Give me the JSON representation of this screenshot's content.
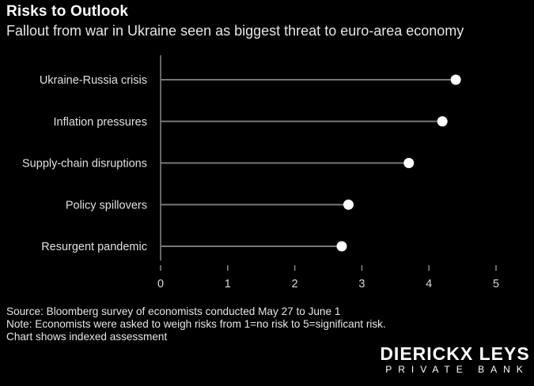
{
  "header": {
    "title": "Risks to Outlook",
    "subtitle": "Fallout from war in Ukraine seen as biggest threat to euro-area economy"
  },
  "chart_data": {
    "type": "lollipop",
    "categories": [
      "Ukraine-Russia crisis",
      "Inflation pressures",
      "Supply-chain disruptions",
      "Policy spillovers",
      "Resurgent pandemic"
    ],
    "values": [
      4.4,
      4.2,
      3.7,
      2.8,
      2.7
    ],
    "xlim": [
      0,
      5
    ],
    "xticks": [
      0,
      1,
      2,
      3,
      4,
      5
    ],
    "grid": false,
    "colors": {
      "stem": "#777777",
      "dot": "#ffffff",
      "axis": "#888888"
    }
  },
  "footer": {
    "source": "Source: Bloomberg survey of economists conducted May 27 to June 1",
    "note": "Note: Economists were asked to weigh risks from 1=no risk to 5=significant risk.",
    "note2": "Chart shows indexed assessment",
    "brand_name": "DIERICKX LEYS",
    "brand_sub": "PRIVATE BANK"
  }
}
